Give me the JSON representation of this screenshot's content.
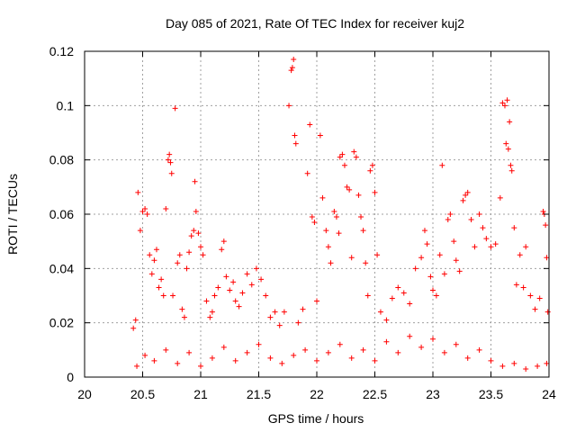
{
  "chart_data": {
    "type": "scatter",
    "title": "Day 085 of 2021, Rate Of TEC Index for receiver kuj2",
    "xlabel": "GPS time / hours",
    "ylabel": "ROTI / TECUs",
    "xlim": [
      20,
      24
    ],
    "ylim": [
      0,
      0.12
    ],
    "x_ticks": [
      20,
      20.5,
      21,
      21.5,
      22,
      22.5,
      23,
      23.5,
      24
    ],
    "x_tick_labels": [
      "20",
      "20.5",
      "21",
      "21.5",
      "22",
      "22.5",
      "23",
      "23.5",
      "24"
    ],
    "y_ticks": [
      0,
      0.02,
      0.04,
      0.06,
      0.08,
      0.1,
      0.12
    ],
    "y_tick_labels": [
      "0",
      "0.02",
      "0.04",
      "0.06",
      "0.08",
      "0.1",
      "0.12"
    ],
    "grid": true,
    "marker": "+",
    "marker_color": "#ff0000",
    "series": [
      {
        "name": "ROTI",
        "points": [
          [
            20.42,
            0.018
          ],
          [
            20.44,
            0.021
          ],
          [
            20.46,
            0.068
          ],
          [
            20.48,
            0.054
          ],
          [
            20.5,
            0.061
          ],
          [
            20.52,
            0.062
          ],
          [
            20.54,
            0.06
          ],
          [
            20.56,
            0.045
          ],
          [
            20.58,
            0.038
          ],
          [
            20.6,
            0.043
          ],
          [
            20.62,
            0.047
          ],
          [
            20.64,
            0.033
          ],
          [
            20.66,
            0.036
          ],
          [
            20.68,
            0.03
          ],
          [
            20.7,
            0.062
          ],
          [
            20.72,
            0.08
          ],
          [
            20.73,
            0.082
          ],
          [
            20.74,
            0.079
          ],
          [
            20.75,
            0.075
          ],
          [
            20.76,
            0.03
          ],
          [
            20.78,
            0.099
          ],
          [
            20.8,
            0.042
          ],
          [
            20.82,
            0.045
          ],
          [
            20.84,
            0.025
          ],
          [
            20.86,
            0.022
          ],
          [
            20.88,
            0.04
          ],
          [
            20.9,
            0.046
          ],
          [
            20.92,
            0.052
          ],
          [
            20.94,
            0.054
          ],
          [
            20.95,
            0.072
          ],
          [
            20.96,
            0.061
          ],
          [
            20.98,
            0.053
          ],
          [
            21.0,
            0.048
          ],
          [
            21.02,
            0.045
          ],
          [
            21.05,
            0.028
          ],
          [
            21.08,
            0.022
          ],
          [
            21.1,
            0.024
          ],
          [
            21.12,
            0.03
          ],
          [
            21.15,
            0.033
          ],
          [
            21.18,
            0.047
          ],
          [
            21.2,
            0.05
          ],
          [
            21.22,
            0.037
          ],
          [
            21.25,
            0.032
          ],
          [
            21.28,
            0.035
          ],
          [
            21.3,
            0.028
          ],
          [
            21.33,
            0.026
          ],
          [
            21.36,
            0.031
          ],
          [
            21.4,
            0.038
          ],
          [
            21.44,
            0.034
          ],
          [
            21.48,
            0.04
          ],
          [
            21.52,
            0.036
          ],
          [
            21.56,
            0.03
          ],
          [
            21.6,
            0.022
          ],
          [
            21.64,
            0.024
          ],
          [
            21.68,
            0.019
          ],
          [
            21.72,
            0.024
          ],
          [
            21.76,
            0.1
          ],
          [
            21.78,
            0.113
          ],
          [
            21.79,
            0.114
          ],
          [
            21.8,
            0.117
          ],
          [
            21.81,
            0.089
          ],
          [
            21.82,
            0.086
          ],
          [
            21.84,
            0.02
          ],
          [
            21.88,
            0.025
          ],
          [
            21.92,
            0.075
          ],
          [
            21.94,
            0.093
          ],
          [
            21.96,
            0.059
          ],
          [
            21.98,
            0.057
          ],
          [
            22.0,
            0.028
          ],
          [
            22.03,
            0.089
          ],
          [
            22.05,
            0.066
          ],
          [
            22.08,
            0.054
          ],
          [
            22.1,
            0.048
          ],
          [
            22.12,
            0.042
          ],
          [
            22.15,
            0.061
          ],
          [
            22.17,
            0.059
          ],
          [
            22.19,
            0.053
          ],
          [
            22.2,
            0.081
          ],
          [
            22.22,
            0.082
          ],
          [
            22.24,
            0.078
          ],
          [
            22.26,
            0.07
          ],
          [
            22.28,
            0.069
          ],
          [
            22.3,
            0.044
          ],
          [
            22.32,
            0.083
          ],
          [
            22.34,
            0.081
          ],
          [
            22.36,
            0.067
          ],
          [
            22.38,
            0.059
          ],
          [
            22.4,
            0.054
          ],
          [
            22.42,
            0.042
          ],
          [
            22.44,
            0.03
          ],
          [
            22.46,
            0.076
          ],
          [
            22.48,
            0.078
          ],
          [
            22.5,
            0.068
          ],
          [
            22.52,
            0.045
          ],
          [
            22.55,
            0.024
          ],
          [
            22.6,
            0.021
          ],
          [
            22.65,
            0.029
          ],
          [
            22.7,
            0.033
          ],
          [
            22.75,
            0.031
          ],
          [
            22.8,
            0.027
          ],
          [
            22.85,
            0.04
          ],
          [
            22.9,
            0.044
          ],
          [
            22.93,
            0.054
          ],
          [
            22.95,
            0.049
          ],
          [
            22.98,
            0.037
          ],
          [
            23.0,
            0.032
          ],
          [
            23.03,
            0.03
          ],
          [
            23.06,
            0.045
          ],
          [
            23.08,
            0.078
          ],
          [
            23.1,
            0.038
          ],
          [
            23.13,
            0.058
          ],
          [
            23.15,
            0.06
          ],
          [
            23.18,
            0.05
          ],
          [
            23.2,
            0.043
          ],
          [
            23.23,
            0.039
          ],
          [
            23.26,
            0.065
          ],
          [
            23.28,
            0.067
          ],
          [
            23.3,
            0.068
          ],
          [
            23.33,
            0.058
          ],
          [
            23.36,
            0.048
          ],
          [
            23.4,
            0.06
          ],
          [
            23.43,
            0.055
          ],
          [
            23.46,
            0.051
          ],
          [
            23.5,
            0.048
          ],
          [
            23.54,
            0.049
          ],
          [
            23.58,
            0.066
          ],
          [
            23.6,
            0.101
          ],
          [
            23.62,
            0.1
          ],
          [
            23.63,
            0.086
          ],
          [
            23.64,
            0.102
          ],
          [
            23.65,
            0.084
          ],
          [
            23.66,
            0.094
          ],
          [
            23.67,
            0.078
          ],
          [
            23.68,
            0.076
          ],
          [
            23.7,
            0.055
          ],
          [
            23.72,
            0.034
          ],
          [
            23.75,
            0.045
          ],
          [
            23.78,
            0.033
          ],
          [
            23.8,
            0.048
          ],
          [
            23.84,
            0.03
          ],
          [
            23.88,
            0.025
          ],
          [
            23.92,
            0.029
          ],
          [
            23.95,
            0.061
          ],
          [
            23.96,
            0.06
          ],
          [
            23.97,
            0.056
          ],
          [
            23.98,
            0.044
          ],
          [
            23.99,
            0.024
          ],
          [
            20.45,
            0.004
          ],
          [
            20.52,
            0.008
          ],
          [
            20.6,
            0.006
          ],
          [
            20.7,
            0.01
          ],
          [
            20.8,
            0.005
          ],
          [
            20.9,
            0.009
          ],
          [
            21.0,
            0.004
          ],
          [
            21.1,
            0.007
          ],
          [
            21.2,
            0.011
          ],
          [
            21.3,
            0.006
          ],
          [
            21.4,
            0.009
          ],
          [
            21.5,
            0.012
          ],
          [
            21.6,
            0.007
          ],
          [
            21.7,
            0.005
          ],
          [
            21.8,
            0.008
          ],
          [
            21.9,
            0.01
          ],
          [
            22.0,
            0.006
          ],
          [
            22.1,
            0.009
          ],
          [
            22.2,
            0.012
          ],
          [
            22.3,
            0.007
          ],
          [
            22.4,
            0.01
          ],
          [
            22.5,
            0.006
          ],
          [
            22.6,
            0.013
          ],
          [
            22.7,
            0.009
          ],
          [
            22.8,
            0.015
          ],
          [
            22.9,
            0.011
          ],
          [
            23.0,
            0.014
          ],
          [
            23.1,
            0.009
          ],
          [
            23.2,
            0.012
          ],
          [
            23.3,
            0.007
          ],
          [
            23.4,
            0.01
          ],
          [
            23.5,
            0.006
          ],
          [
            23.6,
            0.004
          ],
          [
            23.7,
            0.005
          ],
          [
            23.8,
            0.003
          ],
          [
            23.9,
            0.004
          ],
          [
            23.98,
            0.005
          ]
        ]
      }
    ]
  }
}
